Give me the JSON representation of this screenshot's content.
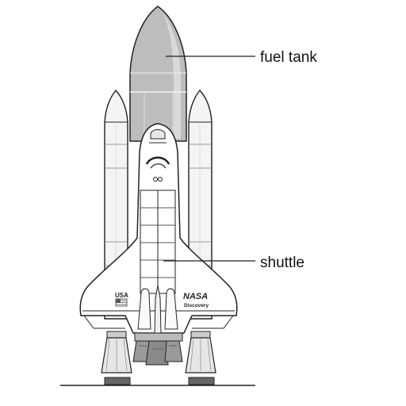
{
  "callouts": {
    "fuel_tank": "fuel tank",
    "shuttle": "shuttle"
  },
  "decals": {
    "usa": "USA",
    "nasa": "NASA",
    "orbiter_name": "Discovery"
  },
  "colors": {
    "line": "#222222",
    "tank_fill": "#bdbdbd",
    "tank_highlight": "#d9d9d9",
    "booster_fill": "#f4f4f4",
    "orbiter_fill": "#ffffff",
    "nozzle_fill": "#9a9a9a"
  }
}
